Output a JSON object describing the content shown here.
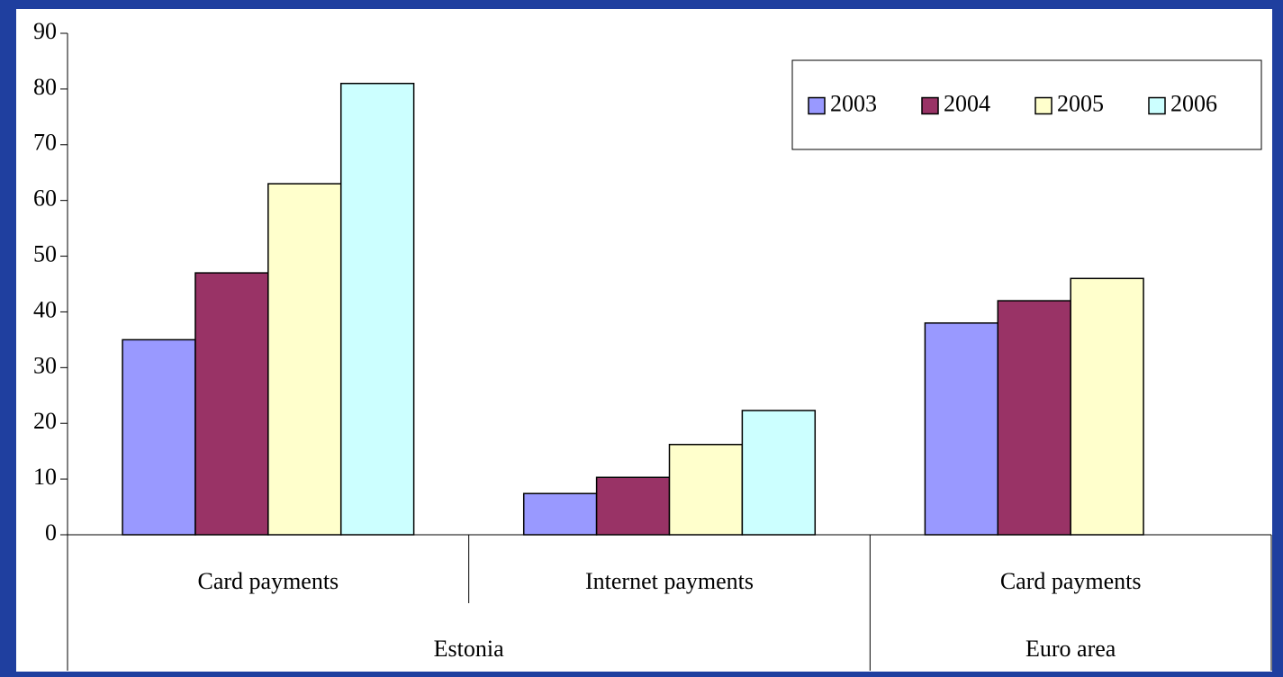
{
  "chart_data": {
    "type": "bar",
    "groups": [
      {
        "name": "Estonia",
        "categories": [
          "Card payments",
          "Internet payments"
        ]
      },
      {
        "name": "Euro area",
        "categories": [
          "Card payments"
        ]
      }
    ],
    "series": [
      {
        "name": "2003",
        "color": "#9999ff",
        "values": [
          35,
          7.4,
          38
        ]
      },
      {
        "name": "2004",
        "color": "#993366",
        "values": [
          47,
          10.3,
          42
        ]
      },
      {
        "name": "2005",
        "color": "#ffffcc",
        "values": [
          63,
          16.2,
          46
        ]
      },
      {
        "name": "2006",
        "color": "#ccffff",
        "values": [
          81,
          22.3,
          null
        ]
      }
    ],
    "ylim": [
      0,
      90
    ],
    "yticks": [
      0,
      10,
      20,
      30,
      40,
      50,
      60,
      70,
      80,
      90
    ],
    "grid": false,
    "legend": "top-right"
  }
}
